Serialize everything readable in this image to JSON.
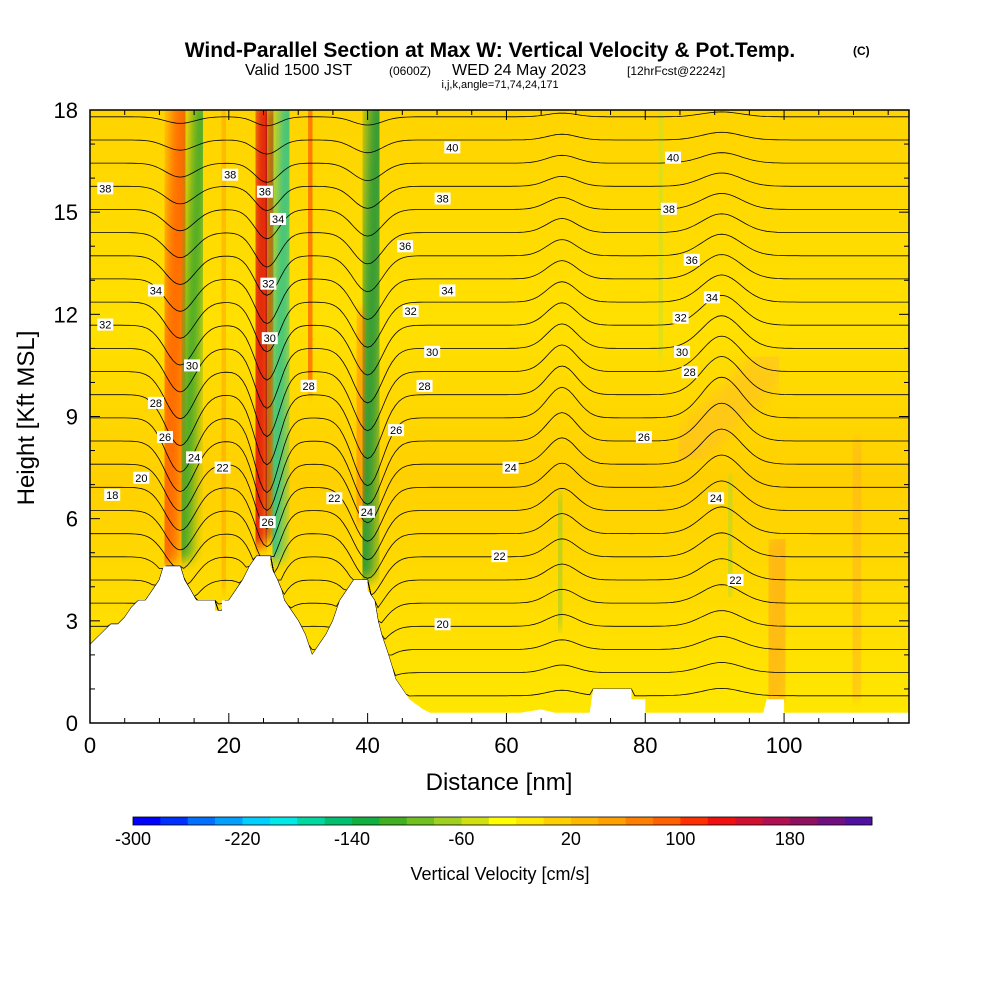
{
  "titles": {
    "main": "Wind-Parallel Section at Max W: Vertical Velocity & Pot.Temp.",
    "copyright": "(C)",
    "valid_prefix": "Valid 1500 JST",
    "valid_utc": "(0600Z)",
    "valid_date": "WED 24 May 2023",
    "forecast": "[12hrFcst@2224z]",
    "params": "i,j,k,angle=71,74,24,171"
  },
  "chart_data": {
    "type": "heatmap",
    "xlabel": "Distance [nm]",
    "ylabel": "Height [Kft MSL]",
    "xlim": [
      0,
      118
    ],
    "ylim": [
      0,
      18
    ],
    "x_ticks": [
      0,
      20,
      40,
      60,
      80,
      100
    ],
    "y_ticks": [
      0,
      3,
      6,
      9,
      12,
      15,
      18
    ],
    "terrain": [
      [
        0,
        2.3
      ],
      [
        1,
        2.5
      ],
      [
        2,
        2.7
      ],
      [
        3,
        2.9
      ],
      [
        4,
        2.9
      ],
      [
        5,
        3.1
      ],
      [
        6,
        3.4
      ],
      [
        7,
        3.6
      ],
      [
        8,
        3.6
      ],
      [
        9,
        3.9
      ],
      [
        10,
        4.2
      ],
      [
        10.6,
        4.6
      ],
      [
        13,
        4.6
      ],
      [
        13.6,
        4.2
      ],
      [
        14.5,
        3.9
      ],
      [
        15.3,
        3.6
      ],
      [
        18,
        3.6
      ],
      [
        18,
        3.3
      ],
      [
        19,
        3.3
      ],
      [
        19,
        3.6
      ],
      [
        20,
        3.6
      ],
      [
        21,
        3.9
      ],
      [
        22,
        4.2
      ],
      [
        23,
        4.6
      ],
      [
        24,
        4.9
      ],
      [
        26,
        4.9
      ],
      [
        26,
        4.6
      ],
      [
        27,
        4.2
      ],
      [
        27.6,
        3.9
      ],
      [
        28,
        3.6
      ],
      [
        29,
        3.3
      ],
      [
        30,
        3.0
      ],
      [
        31,
        2.6
      ],
      [
        31.5,
        2.3
      ],
      [
        32,
        2.0
      ],
      [
        33,
        2.3
      ],
      [
        34,
        2.6
      ],
      [
        35,
        3.0
      ],
      [
        36,
        3.6
      ],
      [
        37,
        3.9
      ],
      [
        38,
        4.2
      ],
      [
        40,
        4.2
      ],
      [
        40,
        3.9
      ],
      [
        41,
        3.6
      ],
      [
        41.5,
        3.0
      ],
      [
        42,
        2.6
      ],
      [
        42.5,
        2.3
      ],
      [
        43,
        2.0
      ],
      [
        43.6,
        1.6
      ],
      [
        44,
        1.3
      ],
      [
        45,
        1.0
      ],
      [
        46,
        0.7
      ],
      [
        48,
        0.4
      ],
      [
        49,
        0.3
      ],
      [
        62,
        0.3
      ],
      [
        65,
        0.4
      ],
      [
        67,
        0.3
      ],
      [
        72,
        0.3
      ],
      [
        72.5,
        1.0
      ],
      [
        78,
        1.0
      ],
      [
        78,
        0.7
      ],
      [
        80,
        0.7
      ],
      [
        80,
        0.3
      ],
      [
        97,
        0.3
      ],
      [
        97.5,
        0.7
      ],
      [
        100,
        0.7
      ],
      [
        100,
        0.3
      ],
      [
        118,
        0.3
      ]
    ],
    "vertical_velocity_colorbar": {
      "label": "Vertical Velocity [cm/s]",
      "tick_labels": [
        "-300",
        "-220",
        "-140",
        "-60",
        "20",
        "100",
        "180"
      ],
      "colors": [
        "#0000ff",
        "#0030ff",
        "#0070ff",
        "#00a0ff",
        "#00cfff",
        "#00e8e8",
        "#00d8a0",
        "#00c070",
        "#10b040",
        "#40b020",
        "#70c020",
        "#a0d020",
        "#d0e010",
        "#ffff00",
        "#ffe800",
        "#ffd000",
        "#ffb800",
        "#ffa000",
        "#ff8000",
        "#ff6000",
        "#ff3000",
        "#f01010",
        "#d01030",
        "#b01050",
        "#901060",
        "#701080",
        "#5010a0"
      ]
    },
    "potential_temperature_contours": {
      "labels": [
        {
          "text": "18",
          "x": 3.2,
          "y": 6.7
        },
        {
          "text": "20",
          "x": 7.4,
          "y": 7.2
        },
        {
          "text": "26",
          "x": 10.8,
          "y": 8.4
        },
        {
          "text": "28",
          "x": 9.5,
          "y": 9.4
        },
        {
          "text": "30",
          "x": 14.7,
          "y": 10.5
        },
        {
          "text": "32",
          "x": 2.2,
          "y": 11.7
        },
        {
          "text": "34",
          "x": 9.5,
          "y": 12.7
        },
        {
          "text": "38",
          "x": 2.2,
          "y": 15.7
        },
        {
          "text": "38",
          "x": 20.2,
          "y": 16.1
        },
        {
          "text": "24",
          "x": 15.0,
          "y": 7.8
        },
        {
          "text": "22",
          "x": 19.1,
          "y": 7.5
        },
        {
          "text": "26",
          "x": 25.6,
          "y": 5.9
        },
        {
          "text": "30",
          "x": 25.9,
          "y": 11.3
        },
        {
          "text": "32",
          "x": 25.7,
          "y": 12.9
        },
        {
          "text": "34",
          "x": 27.1,
          "y": 14.8
        },
        {
          "text": "36",
          "x": 25.2,
          "y": 15.6
        },
        {
          "text": "28",
          "x": 31.5,
          "y": 9.9
        },
        {
          "text": "22",
          "x": 35.2,
          "y": 6.6
        },
        {
          "text": "24",
          "x": 39.9,
          "y": 6.2
        },
        {
          "text": "26",
          "x": 44.1,
          "y": 8.6
        },
        {
          "text": "28",
          "x": 48.2,
          "y": 9.9
        },
        {
          "text": "30",
          "x": 49.3,
          "y": 10.9
        },
        {
          "text": "32",
          "x": 46.2,
          "y": 12.1
        },
        {
          "text": "34",
          "x": 51.5,
          "y": 12.7
        },
        {
          "text": "36",
          "x": 45.4,
          "y": 14.0
        },
        {
          "text": "38",
          "x": 50.8,
          "y": 15.4
        },
        {
          "text": "40",
          "x": 52.2,
          "y": 16.9
        },
        {
          "text": "20",
          "x": 50.8,
          "y": 2.9
        },
        {
          "text": "22",
          "x": 59.0,
          "y": 4.9
        },
        {
          "text": "24",
          "x": 60.6,
          "y": 7.5
        },
        {
          "text": "26",
          "x": 79.8,
          "y": 8.4
        },
        {
          "text": "28",
          "x": 86.4,
          "y": 10.3
        },
        {
          "text": "30",
          "x": 85.3,
          "y": 10.9
        },
        {
          "text": "32",
          "x": 85.1,
          "y": 11.9
        },
        {
          "text": "34",
          "x": 89.6,
          "y": 12.5
        },
        {
          "text": "36",
          "x": 86.7,
          "y": 13.6
        },
        {
          "text": "38",
          "x": 83.4,
          "y": 15.1
        },
        {
          "text": "40",
          "x": 84.0,
          "y": 16.6
        },
        {
          "text": "24",
          "x": 90.2,
          "y": 6.6
        },
        {
          "text": "22",
          "x": 93.0,
          "y": 4.2
        }
      ]
    }
  }
}
